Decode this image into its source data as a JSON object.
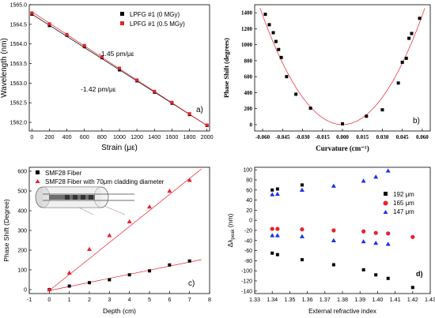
{
  "chart_data": [
    {
      "panel_label": "a)",
      "type": "scatter",
      "xlabel": "Strain (με)",
      "ylabel": "Wavelength (nm)",
      "xlim": [
        -30,
        2030
      ],
      "ylim": [
        1561.78,
        1565.0
      ],
      "x_ticks": [
        "0",
        "200",
        "400",
        "600",
        "800",
        "1000",
        "1200",
        "1400",
        "1600",
        "1800",
        "2000"
      ],
      "y_ticks": [
        "1562.0",
        "1562.5",
        "1563.0",
        "1563.5",
        "1564.0",
        "1564.5",
        "1565.0"
      ],
      "series": [
        {
          "name": "LPFG #1 (0 MGy)",
          "marker": "square",
          "color": "#000000",
          "x": [
            0,
            200,
            400,
            600,
            800,
            1000,
            1200,
            1400,
            1600,
            1800,
            2000
          ],
          "y": [
            1564.76,
            1564.47,
            1564.22,
            1563.93,
            1563.65,
            1563.34,
            1563.06,
            1562.77,
            1562.49,
            1562.2,
            1561.92
          ]
        },
        {
          "name": "LPFG #1 (0.5 MGy)",
          "marker": "square",
          "color": "#e8202a",
          "x": [
            0,
            200,
            400,
            600,
            800,
            1000,
            1200,
            1400,
            1600,
            1800,
            2000
          ],
          "y": [
            1564.79,
            1564.51,
            1564.24,
            1563.96,
            1563.67,
            1563.38,
            1563.08,
            1562.79,
            1562.51,
            1562.22,
            1561.93
          ]
        }
      ],
      "fit_lines": [
        {
          "x": [
            0,
            2000
          ],
          "y": [
            1564.76,
            1561.92
          ],
          "color": "#000000"
        },
        {
          "x": [
            0,
            2000
          ],
          "y": [
            1564.82,
            1561.92
          ],
          "color": "#e8202a"
        }
      ],
      "annotations": [
        "-1.45 pm/με",
        "-1.42 pm/με"
      ]
    },
    {
      "panel_label": "b)",
      "type": "scatter",
      "xlabel": "Curvature (cm⁻¹)",
      "ylabel": "Phase Shift (degrees)",
      "xlim": [
        -0.066,
        0.066
      ],
      "ylim": [
        -80,
        1500
      ],
      "x_ticks": [
        "-0.060",
        "-0.045",
        "-0.030",
        "-0.015",
        "0.000",
        "0.015",
        "0.030",
        "0.045",
        "0.060"
      ],
      "y_ticks": [
        "0",
        "200",
        "400",
        "600",
        "800",
        "1000",
        "1200",
        "1400"
      ],
      "series": [
        {
          "name": "",
          "marker": "square",
          "color": "#000000",
          "x": [
            -0.058,
            -0.055,
            -0.052,
            -0.05,
            -0.048,
            -0.046,
            -0.042,
            -0.035,
            -0.024,
            0.0,
            0.018,
            0.03,
            0.042,
            0.045,
            0.048,
            0.05,
            0.052,
            0.058
          ],
          "y": [
            1380,
            1250,
            1150,
            1040,
            940,
            840,
            600,
            380,
            205,
            10,
            105,
            185,
            520,
            780,
            830,
            1080,
            1140,
            1330
          ]
        }
      ],
      "fit_curve": {
        "type": "parabola",
        "a": 380000,
        "vertex": [
          0.0,
          0
        ],
        "color": "#e8202a"
      }
    },
    {
      "panel_label": "c)",
      "type": "scatter",
      "xlabel": "Depth (cm)",
      "ylabel": "Phase Shift (Degree)",
      "xlim": [
        -1,
        8
      ],
      "ylim": [
        -20,
        620
      ],
      "x_ticks": [
        "-1",
        "0",
        "1",
        "2",
        "3",
        "4",
        "5",
        "6",
        "7",
        "8"
      ],
      "y_ticks": [
        "0",
        "100",
        "200",
        "300",
        "400",
        "500",
        "600"
      ],
      "series": [
        {
          "name": "SMF28 Fiber",
          "marker": "square",
          "color": "#000000",
          "x": [
            0,
            1,
            2,
            3,
            4,
            5,
            6,
            7
          ],
          "y": [
            0,
            18,
            35,
            50,
            75,
            95,
            125,
            145
          ]
        },
        {
          "name": "SMF28 Fiber with 70μm cladding diameter",
          "marker": "triangle",
          "color": "#e8202a",
          "x": [
            0,
            1,
            2,
            3,
            4,
            5,
            6,
            7
          ],
          "y": [
            0,
            85,
            205,
            275,
            345,
            420,
            500,
            555
          ]
        }
      ],
      "fit_lines": [
        {
          "x": [
            0,
            7.6
          ],
          "y": [
            -5,
            152
          ],
          "color": "#e8202a"
        },
        {
          "x": [
            0,
            7.6
          ],
          "y": [
            -5,
            612
          ],
          "color": "#e8202a"
        }
      ]
    },
    {
      "panel_label": "d)",
      "type": "scatter",
      "xlabel": "External refractive index",
      "ylabel": "Δλ_peak (nm)",
      "xlim": [
        1.33,
        1.43
      ],
      "ylim": [
        -145,
        105
      ],
      "x_ticks": [
        "1.33",
        "1.34",
        "1.35",
        "1.36",
        "1.37",
        "1.38",
        "1.39",
        "1.40",
        "1.41",
        "1.42",
        "1.43"
      ],
      "y_ticks": [
        "-140",
        "-120",
        "-100",
        "-80",
        "-60",
        "-40",
        "-20",
        "0",
        "20",
        "40",
        "60",
        "80",
        "100"
      ],
      "series": [
        {
          "name": "192 μm",
          "marker": "square",
          "color": "#000000",
          "x": [
            1.34,
            1.34,
            1.343,
            1.343,
            1.357,
            1.357,
            1.375,
            1.392,
            1.399,
            1.406,
            1.42
          ],
          "y": [
            60,
            -65,
            62,
            -68,
            70,
            -78,
            -88,
            -98,
            -108,
            -115,
            -133
          ]
        },
        {
          "name": "165 μm",
          "marker": "circle",
          "color": "#e8202a",
          "x": [
            1.34,
            1.343,
            1.357,
            1.375,
            1.392,
            1.399,
            1.406,
            1.42
          ],
          "y": [
            -17,
            -17,
            -18,
            -20,
            -22,
            -25,
            -26,
            -33
          ]
        },
        {
          "name": "147 μm",
          "marker": "triangle",
          "color": "#1a33e6",
          "x": [
            1.34,
            1.34,
            1.343,
            1.343,
            1.357,
            1.357,
            1.375,
            1.375,
            1.392,
            1.392,
            1.399,
            1.399,
            1.406,
            1.406
          ],
          "y": [
            51,
            -30,
            52,
            -30,
            60,
            -32,
            68,
            -40,
            78,
            -42,
            86,
            -45,
            98,
            -47
          ]
        }
      ]
    }
  ]
}
